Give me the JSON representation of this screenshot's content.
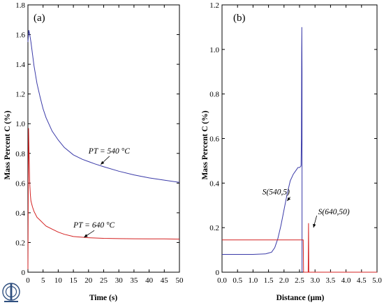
{
  "chart_data": [
    {
      "panel": "(a)",
      "type": "line",
      "xlabel": "Time (s)",
      "ylabel": "Mass Percent C (%)",
      "xlim": [
        0,
        50
      ],
      "ylim": [
        0,
        1.8
      ],
      "xticks": [
        "0",
        "5",
        "10",
        "15",
        "20",
        "25",
        "30",
        "35",
        "40",
        "45",
        "50"
      ],
      "yticks": [
        "0",
        "0.2",
        "0.4",
        "0.6",
        "0.8",
        "1.0",
        "1.2",
        "1.4",
        "1.6",
        "1.8"
      ],
      "grid": false,
      "series": [
        {
          "name": "PT = 540 °C",
          "color": "#3a3aa8",
          "x": [
            0,
            0.3,
            0.6,
            1,
            1.5,
            2,
            3,
            4,
            5,
            6,
            8,
            10,
            12,
            15,
            18,
            20,
            22,
            25,
            30,
            35,
            40,
            45,
            50
          ],
          "y": [
            1.55,
            1.63,
            1.6,
            1.55,
            1.47,
            1.39,
            1.27,
            1.18,
            1.1,
            1.04,
            0.95,
            0.89,
            0.84,
            0.79,
            0.76,
            0.745,
            0.73,
            0.71,
            0.68,
            0.655,
            0.635,
            0.62,
            0.605
          ]
        },
        {
          "name": "PT = 640 °C",
          "color": "#d42020",
          "x": [
            0,
            0.2,
            0.4,
            0.6,
            0.8,
            1,
            1.5,
            2,
            3,
            4,
            5,
            6,
            8,
            10,
            12,
            15,
            20,
            25,
            30,
            35,
            40,
            45,
            50
          ],
          "y": [
            0.02,
            0.97,
            0.78,
            0.6,
            0.52,
            0.48,
            0.44,
            0.41,
            0.37,
            0.35,
            0.33,
            0.31,
            0.29,
            0.27,
            0.255,
            0.24,
            0.232,
            0.228,
            0.226,
            0.225,
            0.224,
            0.224,
            0.223
          ]
        }
      ],
      "annotations": [
        {
          "text": "PT = 540 °C",
          "x": 20,
          "y": 0.8,
          "arrow_to": [
            24,
            0.725
          ]
        },
        {
          "text": "PT = 640 °C",
          "x": 15,
          "y": 0.3,
          "arrow_to": [
            18.5,
            0.235
          ]
        }
      ]
    },
    {
      "panel": "(b)",
      "type": "line",
      "xlabel": "Distance (μm)",
      "ylabel": "Mass Percent C (%)",
      "xlim": [
        0,
        5
      ],
      "ylim": [
        0,
        1.2
      ],
      "xticks": [
        "0.0",
        "0.5",
        "1.0",
        "1.5",
        "2.0",
        "2.5",
        "3.0",
        "3.5",
        "4.0",
        "4.5",
        "5.0"
      ],
      "yticks": [
        "0",
        "0.2",
        "0.4",
        "0.6",
        "0.8",
        "1.0",
        "1.2"
      ],
      "grid": false,
      "series": [
        {
          "name": "S(540,5)",
          "color": "#3a3aa8",
          "x": [
            0,
            0.5,
            1.0,
            1.4,
            1.6,
            1.7,
            1.8,
            1.9,
            2.0,
            2.1,
            2.2,
            2.3,
            2.4,
            2.45,
            2.5,
            2.54,
            2.55,
            2.56,
            2.57,
            2.575,
            2.58,
            2.58
          ],
          "y": [
            0.08,
            0.08,
            0.08,
            0.082,
            0.09,
            0.11,
            0.15,
            0.21,
            0.28,
            0.35,
            0.41,
            0.44,
            0.46,
            0.47,
            0.47,
            0.475,
            0.48,
            0.6,
            1.0,
            1.1,
            0.9,
            0.0
          ]
        },
        {
          "name": "S(640,50)",
          "color": "#d42020",
          "x": [
            0,
            0.5,
            1.0,
            1.5,
            2.0,
            2.5,
            2.6,
            2.62,
            2.63,
            2.7,
            2.72,
            2.74,
            2.75,
            2.76,
            2.77,
            2.78,
            2.79,
            2.8,
            2.82,
            2.85,
            2.9,
            3.0,
            3.5,
            4.0,
            4.5,
            5.0
          ],
          "y": [
            0.145,
            0.145,
            0.145,
            0.145,
            0.145,
            0.145,
            0.145,
            0.145,
            0.0,
            0.0,
            0.0,
            0.0,
            0.0,
            0.0,
            0.0,
            0.0,
            0.22,
            0.0,
            0.0,
            0.0,
            0.0,
            0.0,
            0.0,
            0.0,
            0.0,
            0.0
          ]
        }
      ],
      "annotations": [
        {
          "text": "S(540,5)",
          "x": 1.3,
          "y": 0.35,
          "arrow_to": [
            2.1,
            0.32
          ]
        },
        {
          "text": "S(640,50)",
          "x": 3.1,
          "y": 0.26,
          "arrow_to": [
            2.95,
            0.2
          ]
        }
      ]
    }
  ],
  "logo": {
    "name": "journal-logo-icon"
  }
}
